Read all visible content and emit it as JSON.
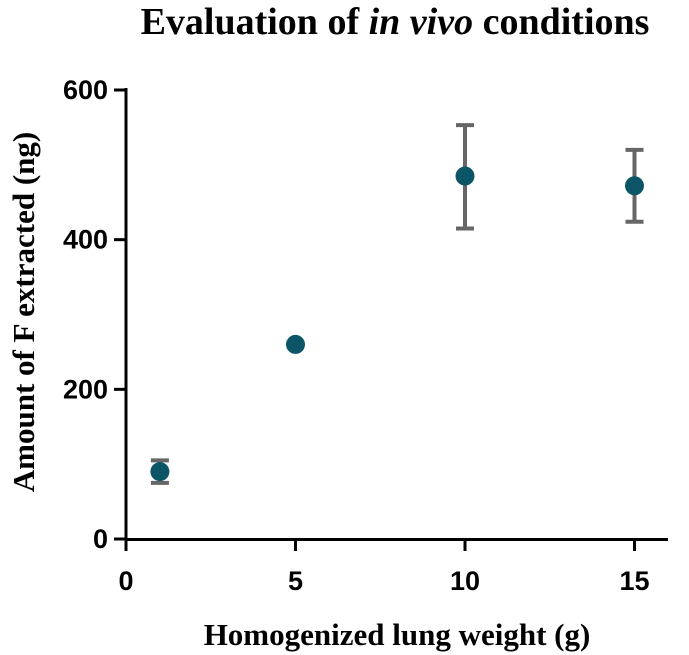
{
  "chart_data": {
    "type": "scatter",
    "title": {
      "prefix": "Evaluation of ",
      "italic": "in vivo",
      "suffix": " conditions"
    },
    "xlabel": "Homogenized lung weight (g)",
    "ylabel": "Amount of F extracted (ng)",
    "xlim": [
      0,
      16
    ],
    "ylim": [
      0,
      600
    ],
    "xticks": [
      0,
      5,
      10,
      15
    ],
    "yticks": [
      0,
      200,
      400,
      600
    ],
    "grid": false,
    "series": [
      {
        "name": "F extracted",
        "points": [
          {
            "x": 1,
            "y": 90,
            "err_low": 75,
            "err_high": 105
          },
          {
            "x": 5,
            "y": 260,
            "err_low": null,
            "err_high": null
          },
          {
            "x": 10,
            "y": 485,
            "err_low": 415,
            "err_high": 553
          },
          {
            "x": 15,
            "y": 472,
            "err_low": 424,
            "err_high": 520
          }
        ]
      }
    ],
    "colors": {
      "marker": "#0b5566",
      "errorbar": "#666666",
      "axis": "#000000"
    }
  }
}
